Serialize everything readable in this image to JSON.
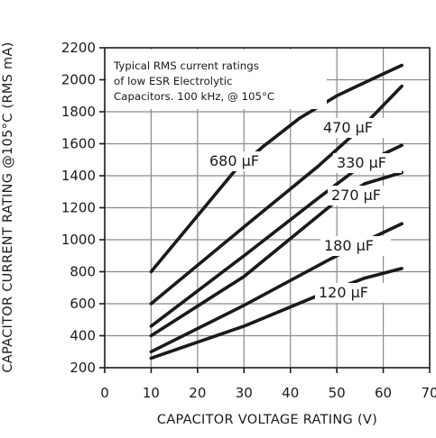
{
  "chart_data": {
    "type": "line",
    "xlabel": "CAPACITOR VOLTAGE RATING (V)",
    "ylabel": "CAPACITOR CURRENT RATING @105°C (RMS mA)",
    "xlim": [
      0,
      70
    ],
    "ylim": [
      200,
      2200
    ],
    "x_ticks": [
      "0",
      "10",
      "20",
      "30",
      "40",
      "50",
      "60",
      "70"
    ],
    "y_ticks": [
      "200",
      "400",
      "600",
      "800",
      "1000",
      "1200",
      "1400",
      "1600",
      "1800",
      "2000",
      "2200"
    ],
    "grid": true,
    "annotation": [
      "Typical RMS current ratings",
      "of low ESR Electrolytic",
      "Capacitors. 100 kHz, @ 105°C"
    ],
    "series": [
      {
        "name": "680 μF",
        "points": [
          [
            10,
            800
          ],
          [
            28,
            1430
          ],
          [
            34,
            1580
          ],
          [
            42,
            1760
          ],
          [
            50,
            1900
          ],
          [
            58,
            2010
          ],
          [
            64,
            2090
          ]
        ]
      },
      {
        "name": "470 μF",
        "points": [
          [
            10,
            600
          ],
          [
            30,
            1080
          ],
          [
            46,
            1460
          ],
          [
            56,
            1720
          ],
          [
            64,
            1960
          ]
        ]
      },
      {
        "name": "330 μF",
        "points": [
          [
            10,
            460
          ],
          [
            30,
            900
          ],
          [
            46,
            1260
          ],
          [
            56,
            1480
          ],
          [
            64,
            1590
          ]
        ]
      },
      {
        "name": "270 μF",
        "points": [
          [
            10,
            400
          ],
          [
            30,
            770
          ],
          [
            49,
            1220
          ],
          [
            56,
            1350
          ],
          [
            64,
            1420
          ]
        ]
      },
      {
        "name": "180 μF",
        "points": [
          [
            10,
            300
          ],
          [
            30,
            590
          ],
          [
            48,
            870
          ],
          [
            56,
            990
          ],
          [
            64,
            1100
          ]
        ]
      },
      {
        "name": "120 μF",
        "points": [
          [
            10,
            260
          ],
          [
            30,
            460
          ],
          [
            45,
            640
          ],
          [
            56,
            760
          ],
          [
            64,
            820
          ]
        ]
      }
    ]
  }
}
